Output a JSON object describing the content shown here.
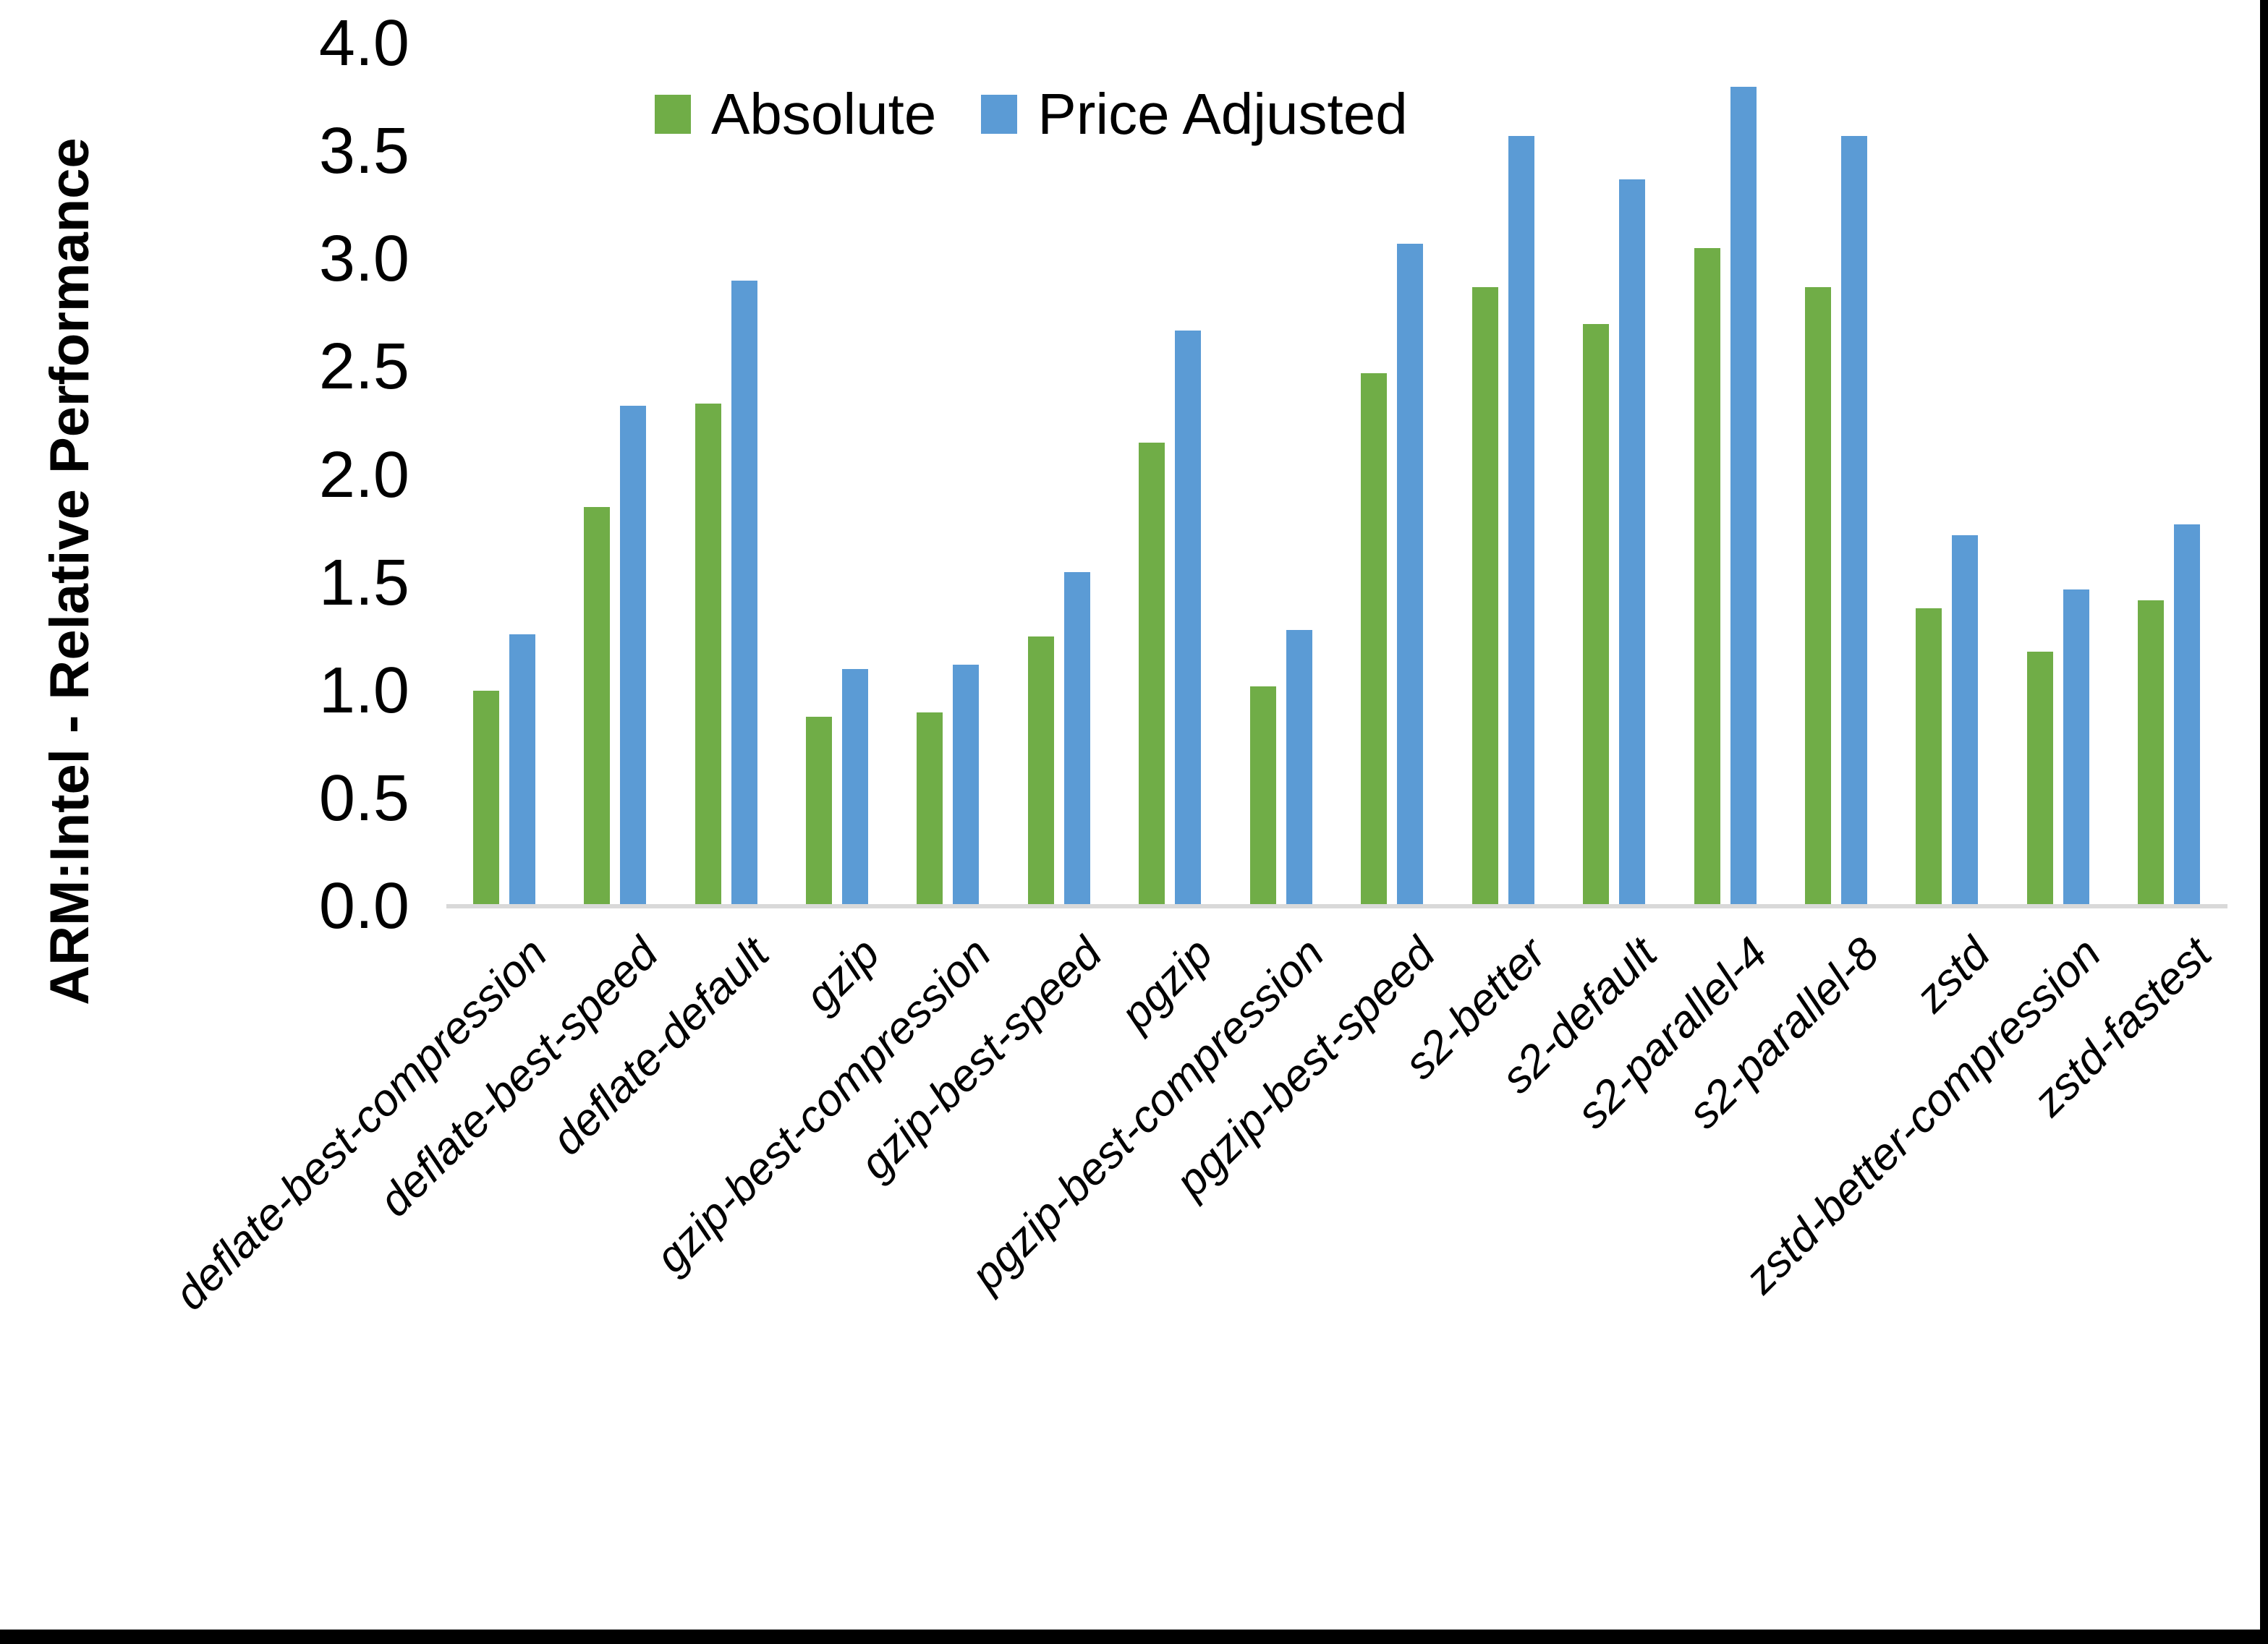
{
  "chart_data": {
    "type": "bar",
    "title": "",
    "xlabel": "",
    "ylabel": "ARM:Intel - Relative Performance",
    "ylim": [
      0.0,
      4.0
    ],
    "ytick_labels": [
      "4.0",
      "3.5",
      "3.0",
      "2.5",
      "2.0",
      "1.5",
      "1.0",
      "0.5",
      "0.0"
    ],
    "grid": false,
    "legend_position": "top-center",
    "categories": [
      "deflate-best-compression",
      "deflate-best-speed",
      "deflate-default",
      "gzip",
      "gzip-best-compression",
      "gzip-best-speed",
      "pgzip",
      "pgzip-best-compression",
      "pgzip-best-speed",
      "s2-better",
      "s2-default",
      "s2-parallel-4",
      "s2-parallel-8",
      "zstd",
      "zstd-better-compression",
      "zstd-fastest"
    ],
    "series": [
      {
        "name": "Absolute",
        "color": "#70AD47",
        "values": [
          1.0,
          1.85,
          2.33,
          0.88,
          0.9,
          1.25,
          2.15,
          1.02,
          2.47,
          2.87,
          2.7,
          3.05,
          2.87,
          1.38,
          1.18,
          1.42
        ]
      },
      {
        "name": "Price Adjusted",
        "color": "#5B9BD5",
        "values": [
          1.26,
          2.32,
          2.9,
          1.1,
          1.12,
          1.55,
          2.67,
          1.28,
          3.07,
          3.57,
          3.37,
          3.8,
          3.57,
          1.72,
          1.47,
          1.77
        ]
      }
    ]
  },
  "colors": {
    "background": "#FFFFFF",
    "axis_line": "#D9D9D9",
    "text": "#000000",
    "window_border": "#000000"
  }
}
